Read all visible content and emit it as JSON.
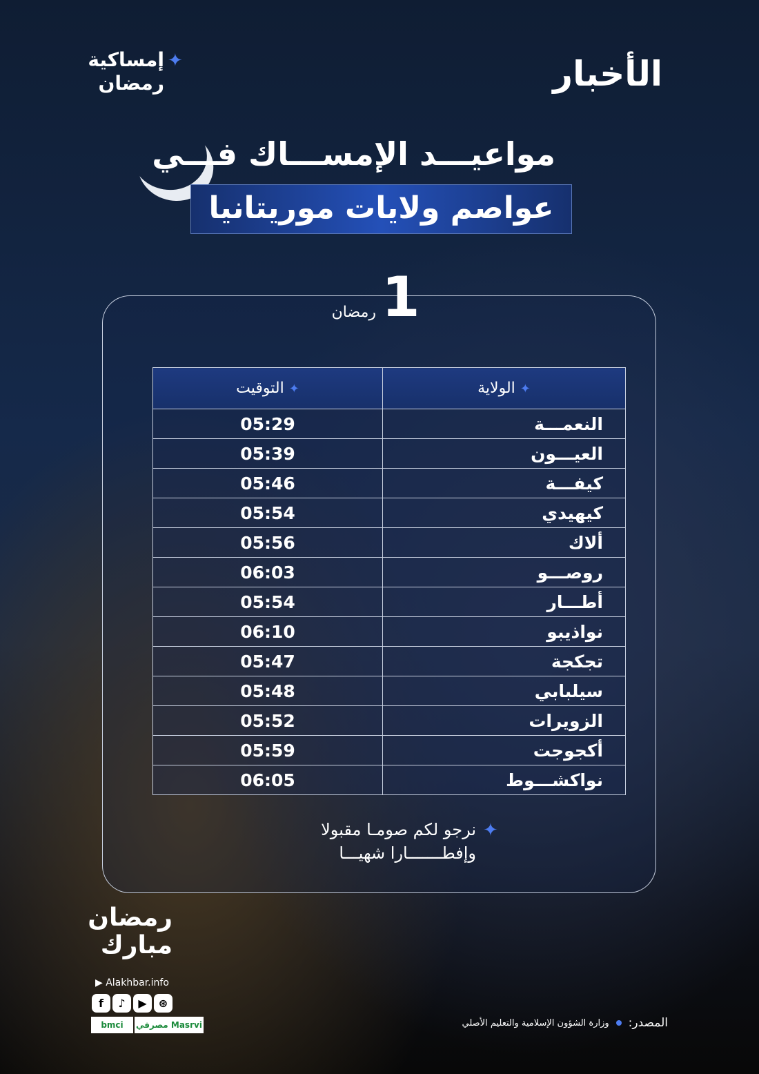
{
  "brand": {
    "logo": "الأخبار",
    "badge": "إمساكية",
    "badge2": "رمضان"
  },
  "title": {
    "line1": "مواعيـــد الإمســـاك فـــي",
    "line2": "عواصم ولايات موريتانيا"
  },
  "day": {
    "number": "1",
    "label": "رمضان"
  },
  "table": {
    "headers": {
      "state": "الولاية",
      "time": "التوقيت"
    },
    "rows": [
      {
        "state": "النعمـــة",
        "time": "05:29"
      },
      {
        "state": "العيـــون",
        "time": "05:39"
      },
      {
        "state": "كيفـــة",
        "time": "05:46"
      },
      {
        "state": "كيهيدي",
        "time": "05:54"
      },
      {
        "state": "ألاك",
        "time": "05:56"
      },
      {
        "state": "روصـــو",
        "time": "06:03"
      },
      {
        "state": "أطـــار",
        "time": "05:54"
      },
      {
        "state": "نواذيبو",
        "time": "06:10"
      },
      {
        "state": "تجكجة",
        "time": "05:47"
      },
      {
        "state": "سيلبابي",
        "time": "05:48"
      },
      {
        "state": "الزويرات",
        "time": "05:52"
      },
      {
        "state": "أكجوجت",
        "time": "05:59"
      },
      {
        "state": "نواكشـــوط",
        "time": "06:05"
      }
    ]
  },
  "wish": {
    "line1": "نرجو لكم صومـا مقبولا",
    "line2": "وإفطـــــــارا شهيـــا"
  },
  "greeting": {
    "line1": "رمضان",
    "line2": "مبارك"
  },
  "footer": {
    "site": "Alakhbar.info",
    "social": [
      "facebook-icon",
      "tiktok-icon",
      "youtube-icon",
      "dribbble-icon"
    ],
    "sponsors": [
      "bmci",
      "مصرفي Masrvi"
    ],
    "source_label": "المصدر:",
    "source": "وزارة الشؤون الإسلامية والتعليم الأصلي"
  },
  "colors": {
    "accent": "#4d7cf0",
    "title_band": "#2450b8"
  }
}
